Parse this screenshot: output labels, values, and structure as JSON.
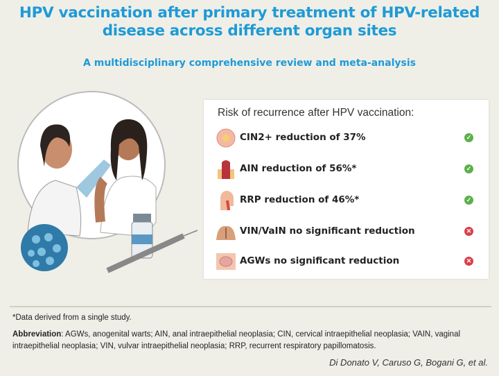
{
  "header": {
    "title": "HPV vaccination after primary treatment of HPV-related disease across different organ sites",
    "subtitle": "A multidisciplinary comprehensive review and meta-analysis"
  },
  "card": {
    "title": "Risk of recurrence after HPV vaccination:",
    "items": [
      {
        "icon": "cervix-icon",
        "label": "CIN2+ reduction of 37%",
        "status": "check",
        "color": "#5cb04a"
      },
      {
        "icon": "anal-canal-icon",
        "label": "AIN reduction of 56%*",
        "status": "check",
        "color": "#5cb04a"
      },
      {
        "icon": "head-airway-icon",
        "label": "RRP reduction of 46%*",
        "status": "check",
        "color": "#5cb04a"
      },
      {
        "icon": "vulva-icon",
        "label": "VIN/VaIN no significant reduction",
        "status": "cross",
        "color": "#d9404a"
      },
      {
        "icon": "wart-skin-icon",
        "label": "AGWs no significant reduction",
        "status": "cross",
        "color": "#d9404a"
      }
    ]
  },
  "footer": {
    "note": "*Data derived from a single study.",
    "abbrev_label": "Abbreviation",
    "abbrev_text": ": AGWs, anogenital warts; AIN, anal intraepithelial neoplasia; CIN, cervical intraepithelial neoplasia; VAIN, vaginal intraepithelial neoplasia; VIN, vulvar intraepithelial neoplasia; RRP, recurrent respiratory papillomatosis.",
    "citation": "Di Donato V, Caruso G, Bogani G, et al."
  },
  "colors": {
    "title": "#1e9ad6",
    "background": "#efefe8"
  }
}
